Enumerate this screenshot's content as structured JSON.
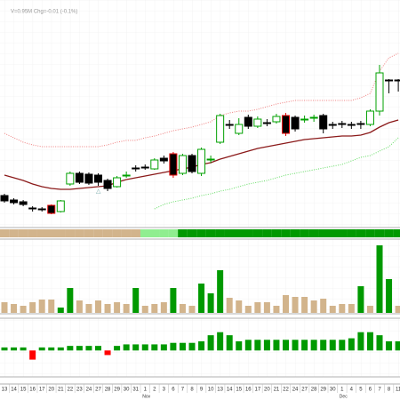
{
  "chart_data": {
    "type": "candlestick",
    "header": "V=0.95M  Chg=-0.01 (-0.1%)",
    "categories": [
      "13",
      "14",
      "15",
      "16",
      "17",
      "20",
      "21",
      "22",
      "23",
      "24",
      "27",
      "28",
      "29",
      "30",
      "31",
      "1",
      "2",
      "3",
      "6",
      "7",
      "8",
      "9",
      "10",
      "13",
      "14",
      "15",
      "16",
      "17",
      "20",
      "21",
      "22",
      "24",
      "27",
      "28",
      "29",
      "30",
      "1",
      "4",
      "5",
      "6",
      "7",
      "8",
      "11"
    ],
    "months": [
      {
        "index": 15,
        "label": "Nov"
      },
      {
        "index": 36,
        "label": "Dec"
      }
    ],
    "open": [
      35,
      30,
      28,
      21,
      20,
      24,
      17,
      48,
      60,
      59,
      58,
      52,
      45,
      57,
      66,
      67,
      65,
      77,
      82,
      60,
      80,
      60,
      75,
      95,
      115,
      105,
      123,
      113,
      117,
      118,
      125,
      123,
      120,
      122,
      125,
      115,
      116,
      115,
      116,
      115,
      130,
      165,
      165
    ],
    "close": [
      29,
      27,
      25,
      20,
      19,
      15,
      29,
      60,
      50,
      49,
      50,
      43,
      55,
      58,
      65,
      66,
      75,
      74,
      58,
      80,
      62,
      87,
      76,
      125,
      114,
      115,
      113,
      121,
      116,
      124,
      105,
      110,
      121,
      123,
      110,
      114,
      115,
      114,
      115,
      130,
      173,
      164,
      164
    ],
    "high": [
      37,
      32,
      30,
      23,
      22,
      25,
      30,
      62,
      62,
      61,
      60,
      54,
      57,
      62,
      69,
      70,
      77,
      80,
      84,
      82,
      82,
      89,
      80,
      127,
      120,
      122,
      126,
      124,
      121,
      127,
      128,
      125,
      125,
      126,
      127,
      118,
      119,
      118,
      119,
      132,
      182,
      166,
      166
    ],
    "low": [
      27,
      25,
      23,
      17,
      17,
      14,
      16,
      46,
      48,
      47,
      46,
      40,
      44,
      55,
      62,
      64,
      64,
      71,
      55,
      58,
      60,
      57,
      72,
      93,
      110,
      103,
      110,
      111,
      113,
      116,
      102,
      107,
      117,
      118,
      105,
      110,
      111,
      110,
      110,
      113,
      125,
      150,
      152
    ],
    "edge_colors": [
      "#000000",
      "#000000",
      "#000000",
      "#000000",
      "#000000",
      "#e00000",
      "#00a000",
      "#00a000",
      "#000000",
      "#000000",
      "#000000",
      "#000000",
      "#00a000",
      "#00a000",
      "#000000",
      "#000000",
      "#00a000",
      "#000000",
      "#e00000",
      "#00a000",
      "#000000",
      "#00a000",
      "#00a000",
      "#00a000",
      "#000000",
      "#00a000",
      "#000000",
      "#00a000",
      "#000000",
      "#00a000",
      "#e00000",
      "#000000",
      "#00a000",
      "#00a000",
      "#000000",
      "#000000",
      "#000000",
      "#000000",
      "#000000",
      "#00a000",
      "#00a000",
      "#000000",
      "#000000"
    ],
    "ylim": [
      0,
      235
    ],
    "grid": true,
    "overlays": [
      {
        "color": "#8b1a1a",
        "style": "solid",
        "values": [
          58,
          55,
          52,
          48,
          45,
          43,
          42,
          42,
          43,
          44,
          45,
          46,
          50,
          53,
          55,
          57,
          59,
          61,
          63,
          65,
          67,
          70,
          72,
          76,
          79,
          82,
          85,
          88,
          90,
          92,
          94,
          96,
          98,
          99,
          100,
          101,
          102,
          102,
          103,
          106,
          112,
          117,
          120
        ]
      },
      {
        "color": "#f08080",
        "style": "dotted",
        "values": [
          105,
          100,
          95,
          92,
          90,
          90,
          90,
          90,
          90,
          90,
          90,
          92,
          95,
          97,
          97,
          100,
          102,
          105,
          108,
          110,
          112,
          115,
          118,
          125,
          128,
          130,
          130,
          132,
          135,
          138,
          140,
          142,
          142,
          142,
          142,
          142,
          142,
          142,
          145,
          150,
          175,
          190,
          195
        ]
      },
      {
        "color": "#66dd66",
        "style": "dotted",
        "values": [
          null,
          null,
          null,
          null,
          null,
          null,
          null,
          null,
          null,
          null,
          null,
          null,
          null,
          null,
          null,
          null,
          20,
          25,
          28,
          30,
          32,
          35,
          37,
          40,
          42,
          45,
          48,
          50,
          52,
          55,
          58,
          60,
          62,
          64,
          66,
          68,
          70,
          74,
          78,
          80,
          85,
          90,
          100
        ]
      }
    ],
    "trend_strip": [
      "#d2b48c",
      "#d2b48c",
      "#d2b48c",
      "#d2b48c",
      "#d2b48c",
      "#d2b48c",
      "#d2b48c",
      "#d2b48c",
      "#d2b48c",
      "#d2b48c",
      "#d2b48c",
      "#d2b48c",
      "#d2b48c",
      "#d2b48c",
      "#d2b48c",
      "#90ee90",
      "#90ee90",
      "#90ee90",
      "#90ee90",
      "#009900",
      "#009900",
      "#009900",
      "#009900",
      "#009900",
      "#009900",
      "#009900",
      "#009900",
      "#009900",
      "#009900",
      "#009900",
      "#009900",
      "#009900",
      "#009900",
      "#009900",
      "#009900",
      "#009900",
      "#009900",
      "#009900",
      "#009900",
      "#009900",
      "#009900",
      "#009900",
      "#009900"
    ],
    "volume": {
      "type": "bar",
      "ylim": [
        0,
        80
      ],
      "values": [
        12,
        10,
        8,
        12,
        15,
        15,
        6,
        28,
        14,
        10,
        14,
        10,
        12,
        10,
        28,
        8,
        10,
        12,
        28,
        10,
        8,
        33,
        22,
        48,
        17,
        14,
        8,
        12,
        12,
        8,
        20,
        18,
        18,
        14,
        16,
        8,
        10,
        10,
        30,
        8,
        76,
        38,
        8
      ],
      "colors": [
        "#d2b48c",
        "#d2b48c",
        "#d2b48c",
        "#d2b48c",
        "#d2b48c",
        "#d2b48c",
        "#009900",
        "#009900",
        "#d2b48c",
        "#d2b48c",
        "#d2b48c",
        "#d2b48c",
        "#d2b48c",
        "#d2b48c",
        "#009900",
        "#d2b48c",
        "#d2b48c",
        "#d2b48c",
        "#009900",
        "#d2b48c",
        "#d2b48c",
        "#009900",
        "#009900",
        "#009900",
        "#d2b48c",
        "#d2b48c",
        "#d2b48c",
        "#d2b48c",
        "#d2b48c",
        "#d2b48c",
        "#d2b48c",
        "#d2b48c",
        "#d2b48c",
        "#d2b48c",
        "#d2b48c",
        "#d2b48c",
        "#d2b48c",
        "#d2b48c",
        "#009900",
        "#d2b48c",
        "#009900",
        "#009900",
        "#d2b48c"
      ]
    },
    "indicator": {
      "type": "bar",
      "ylim": [
        -15,
        20
      ],
      "up_color": "#009900",
      "down_color": "#ff0000",
      "values": [
        2,
        2,
        2,
        -6,
        2,
        2,
        2,
        3,
        3,
        3,
        3,
        -3,
        3,
        4,
        4,
        4,
        4,
        4,
        5,
        5,
        5,
        6,
        10,
        12,
        10,
        6,
        7,
        7,
        7,
        7,
        7,
        7,
        7,
        7,
        7,
        7,
        7,
        8,
        12,
        12,
        10,
        6,
        6
      ]
    }
  }
}
